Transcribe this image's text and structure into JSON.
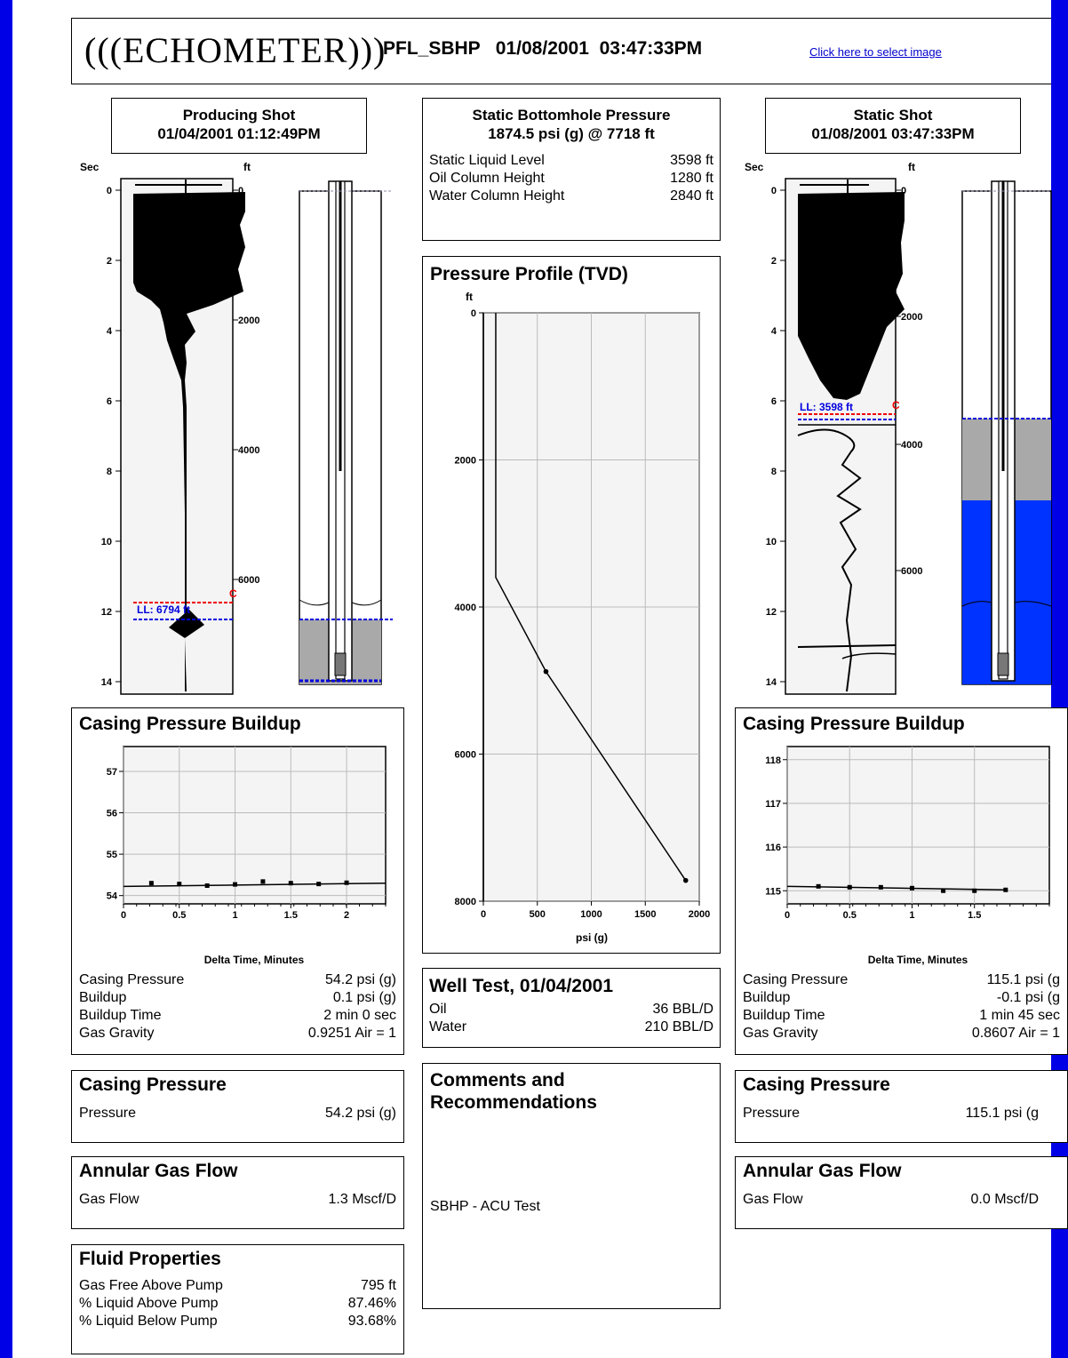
{
  "header": {
    "logo": "(((ECHOMETER)))",
    "title": "PFL_SBHP   01/08/2001  03:47:33PM",
    "select_image_link": "Click here to select image"
  },
  "producing_shot": {
    "caption_line1": "Producing Shot",
    "caption_line2": "01/04/2001  01:12:49PM",
    "left_axis_label": "Sec",
    "right_axis_label": "ft",
    "sec_ticks": [
      "0",
      "2",
      "4",
      "6",
      "8",
      "10",
      "12",
      "14"
    ],
    "ft_ticks": [
      "0",
      "2000",
      "4000",
      "6000"
    ],
    "liquid_level_label": "LL: 6794 ft",
    "collar_marker": "C"
  },
  "static_shot": {
    "caption_line1": "Static Shot",
    "caption_line2": "01/08/2001  03:47:33PM",
    "left_axis_label": "Sec",
    "right_axis_label": "ft",
    "sec_ticks": [
      "0",
      "2",
      "4",
      "6",
      "8",
      "10",
      "12",
      "14"
    ],
    "ft_ticks": [
      "0",
      "2000",
      "4000",
      "6000"
    ],
    "liquid_level_label": "LL: 3598 ft",
    "collar_marker": "C"
  },
  "sbhp": {
    "title_line1": "Static Bottomhole Pressure",
    "title_line2": "1874.5 psi (g) @ 7718 ft",
    "rows": [
      {
        "label": "Static Liquid Level",
        "value": "3598 ft"
      },
      {
        "label": "Oil Column Height",
        "value": "1280 ft"
      },
      {
        "label": "Water Column Height",
        "value": "2840 ft"
      }
    ]
  },
  "pressure_profile": {
    "title": "Pressure Profile (TVD)",
    "y_unit": "ft",
    "x_label": "psi (g)"
  },
  "well_test": {
    "title": "Well Test, 01/04/2001",
    "rows": [
      {
        "label": "Oil",
        "value": "36 BBL/D"
      },
      {
        "label": "Water",
        "value": "210 BBL/D"
      }
    ]
  },
  "comments": {
    "title_line1": "Comments and",
    "title_line2": "Recommendations",
    "text": "SBHP - ACU Test"
  },
  "left": {
    "buildup": {
      "title": "Casing Pressure Buildup",
      "x_label": "Delta Time, Minutes",
      "rows": [
        {
          "label": "Casing Pressure",
          "value": "54.2 psi (g)"
        },
        {
          "label": "Buildup",
          "value": "0.1 psi (g)"
        },
        {
          "label": "Buildup Time",
          "value": "2 min 0 sec"
        },
        {
          "label": "Gas Gravity",
          "value": "0.9251 Air = 1"
        }
      ]
    },
    "casing_pressure": {
      "title": "Casing Pressure",
      "label": "Pressure",
      "value": "54.2 psi (g)"
    },
    "annular_gas": {
      "title": "Annular Gas Flow",
      "label": "Gas Flow",
      "value": "1.3 Mscf/D"
    },
    "fluid": {
      "title": "Fluid Properties",
      "rows": [
        {
          "label": "Gas Free Above Pump",
          "value": "795 ft"
        },
        {
          "label": "% Liquid Above Pump",
          "value": "87.46%"
        },
        {
          "label": "% Liquid Below Pump",
          "value": "93.68%"
        }
      ]
    }
  },
  "right": {
    "buildup": {
      "title": "Casing Pressure Buildup",
      "x_label": "Delta Time, Minutes",
      "rows": [
        {
          "label": "Casing Pressure",
          "value": "115.1 psi (g"
        },
        {
          "label": "Buildup",
          "value": "-0.1 psi (g"
        },
        {
          "label": "Buildup Time",
          "value": "1 min 45 sec"
        },
        {
          "label": "Gas Gravity",
          "value": "0.8607 Air = 1"
        }
      ]
    },
    "casing_pressure": {
      "title": "Casing Pressure",
      "label": "Pressure",
      "value": "115.1 psi (g"
    },
    "annular_gas": {
      "title": "Annular Gas Flow",
      "label": "Gas Flow",
      "value": "0.0 Mscf/D"
    }
  },
  "chart_data": [
    {
      "id": "pressure_profile",
      "type": "line",
      "title": "Pressure Profile (TVD)",
      "xlabel": "psi (g)",
      "ylabel": "ft",
      "xlim": [
        0,
        2000
      ],
      "ylim": [
        8000,
        0
      ],
      "xticks": [
        "0",
        "500",
        "1000",
        "1500",
        "2000"
      ],
      "yticks": [
        "0",
        "2000",
        "4000",
        "6000",
        "8000"
      ],
      "series": [
        {
          "x": [
            115,
            115,
            580,
            1874.5
          ],
          "y": [
            0,
            3598,
            4878,
            7718
          ]
        },
        {
          "x": [
            0,
            0
          ],
          "y": [
            0,
            8000
          ]
        }
      ],
      "grid": true
    },
    {
      "id": "left_buildup",
      "type": "scatter",
      "xlabel": "Delta Time, Minutes",
      "xlim": [
        0,
        2.35
      ],
      "ylim": [
        53.8,
        57.6
      ],
      "xticks": [
        "0",
        "0.5",
        "1",
        "1.5",
        "2"
      ],
      "yticks": [
        "54",
        "55",
        "56",
        "57"
      ],
      "points": {
        "x": [
          0.25,
          0.5,
          0.75,
          1.0,
          1.25,
          1.5,
          1.75,
          2.0
        ],
        "y": [
          54.3,
          54.28,
          54.24,
          54.27,
          54.34,
          54.3,
          54.28,
          54.31
        ]
      },
      "fit": {
        "x": [
          0,
          2.35
        ],
        "y": [
          54.22,
          54.3
        ]
      },
      "grid": true
    },
    {
      "id": "right_buildup",
      "type": "scatter",
      "xlabel": "Delta Time, Minutes",
      "xlim": [
        0,
        2.1
      ],
      "ylim": [
        114.7,
        118.3
      ],
      "xticks": [
        "0",
        "0.5",
        "1",
        "1.5"
      ],
      "yticks": [
        "115",
        "116",
        "117",
        "118"
      ],
      "points": {
        "x": [
          0.25,
          0.5,
          0.75,
          1.0,
          1.25,
          1.5,
          1.75
        ],
        "y": [
          115.1,
          115.08,
          115.08,
          115.06,
          115.0,
          115.0,
          115.02
        ]
      },
      "fit": {
        "x": [
          0,
          1.75
        ],
        "y": [
          115.1,
          115.02
        ]
      },
      "grid": true
    }
  ]
}
